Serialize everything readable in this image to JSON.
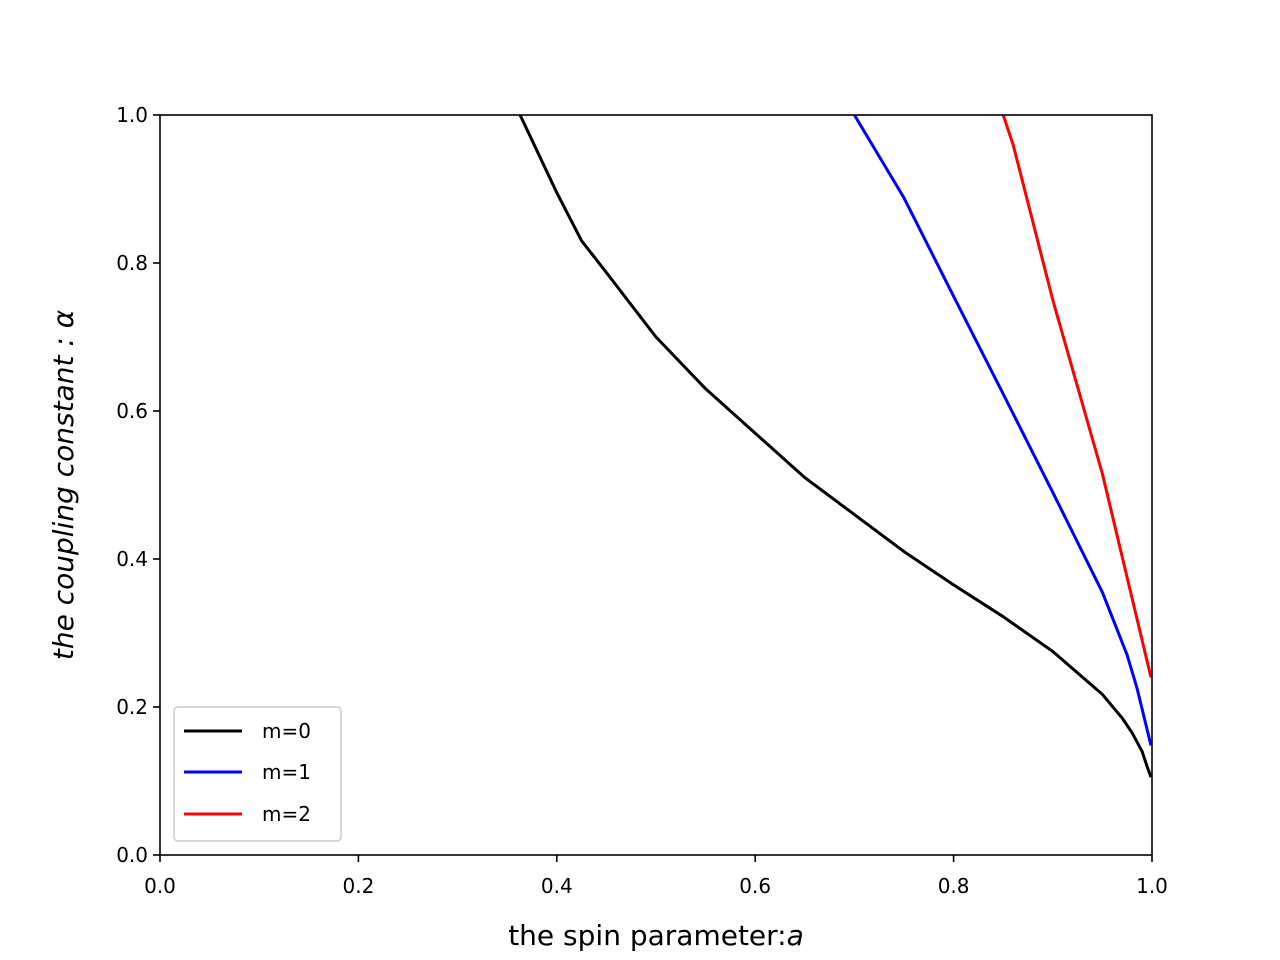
{
  "chart_data": {
    "type": "line",
    "xlabel_prefix": "the spin parameter:",
    "xlabel_symbol": "a",
    "ylabel": "the coupling constant : α",
    "xlim": [
      0.0,
      1.0
    ],
    "ylim": [
      0.0,
      1.0
    ],
    "xticks": [
      "0.0",
      "0.2",
      "0.4",
      "0.6",
      "0.8",
      "1.0"
    ],
    "yticks": [
      "0.0",
      "0.2",
      "0.4",
      "0.6",
      "0.8",
      "1.0"
    ],
    "grid": false,
    "legend_position": "lower-left",
    "series": [
      {
        "name": "m=0",
        "color": "#000000",
        "x": [
          0.363,
          0.4,
          0.425,
          0.45,
          0.5,
          0.55,
          0.6,
          0.65,
          0.7,
          0.75,
          0.8,
          0.85,
          0.9,
          0.95,
          0.97,
          0.98,
          0.99,
          0.995,
          0.999
        ],
        "y": [
          1.0,
          0.895,
          0.83,
          0.787,
          0.7,
          0.63,
          0.57,
          0.51,
          0.46,
          0.41,
          0.365,
          0.322,
          0.275,
          0.217,
          0.185,
          0.165,
          0.14,
          0.12,
          0.105
        ]
      },
      {
        "name": "m=1",
        "color": "#0000ff",
        "x": [
          0.7,
          0.75,
          0.8,
          0.85,
          0.9,
          0.95,
          0.975,
          0.985,
          0.999
        ],
        "y": [
          1.0,
          0.888,
          0.755,
          0.623,
          0.49,
          0.355,
          0.27,
          0.225,
          0.148
        ]
      },
      {
        "name": "m=2",
        "color": "#ff0000",
        "x": [
          0.85,
          0.86,
          0.9,
          0.95,
          0.999
        ],
        "y": [
          1.0,
          0.96,
          0.75,
          0.515,
          0.24
        ]
      }
    ]
  }
}
